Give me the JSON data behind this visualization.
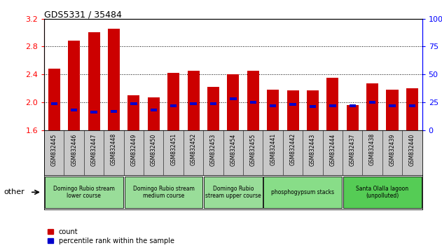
{
  "title": "GDS5331 / 35484",
  "samples": [
    "GSM832445",
    "GSM832446",
    "GSM832447",
    "GSM832448",
    "GSM832449",
    "GSM832450",
    "GSM832451",
    "GSM832452",
    "GSM832453",
    "GSM832454",
    "GSM832455",
    "GSM832441",
    "GSM832442",
    "GSM832443",
    "GSM832444",
    "GSM832437",
    "GSM832438",
    "GSM832439",
    "GSM832440"
  ],
  "count_values": [
    2.48,
    2.88,
    3.0,
    3.05,
    2.1,
    2.07,
    2.42,
    2.45,
    2.22,
    2.4,
    2.45,
    2.18,
    2.17,
    2.17,
    2.35,
    1.96,
    2.27,
    2.18,
    2.2
  ],
  "percentile_values": [
    24,
    18,
    16,
    17,
    24,
    18,
    22,
    24,
    24,
    28,
    25,
    22,
    23,
    21,
    22,
    22,
    25,
    22,
    22
  ],
  "ylim_left": [
    1.6,
    3.2
  ],
  "ylim_right": [
    0,
    100
  ],
  "yticks_left": [
    1.6,
    2.0,
    2.4,
    2.8,
    3.2
  ],
  "yticks_right": [
    0,
    25,
    50,
    75,
    100
  ],
  "ytick_labels_right": [
    "0",
    "25",
    "50",
    "75",
    "100%"
  ],
  "bar_color": "#cc0000",
  "percentile_color": "#0000cc",
  "groups": [
    {
      "label": "Domingo Rubio stream\nlower course",
      "start": 0,
      "end": 4,
      "color": "#99dd99"
    },
    {
      "label": "Domingo Rubio stream\nmedium course",
      "start": 4,
      "end": 8,
      "color": "#99dd99"
    },
    {
      "label": "Domingo Rubio\nstream upper course",
      "start": 8,
      "end": 11,
      "color": "#99dd99"
    },
    {
      "label": "phosphogypsum stacks",
      "start": 11,
      "end": 15,
      "color": "#88dd88"
    },
    {
      "label": "Santa Olalla lagoon\n(unpolluted)",
      "start": 15,
      "end": 19,
      "color": "#55cc55"
    }
  ],
  "legend_count_label": "count",
  "legend_pct_label": "percentile rank within the sample",
  "other_label": "other",
  "xaxis_bg": "#c8c8c8"
}
